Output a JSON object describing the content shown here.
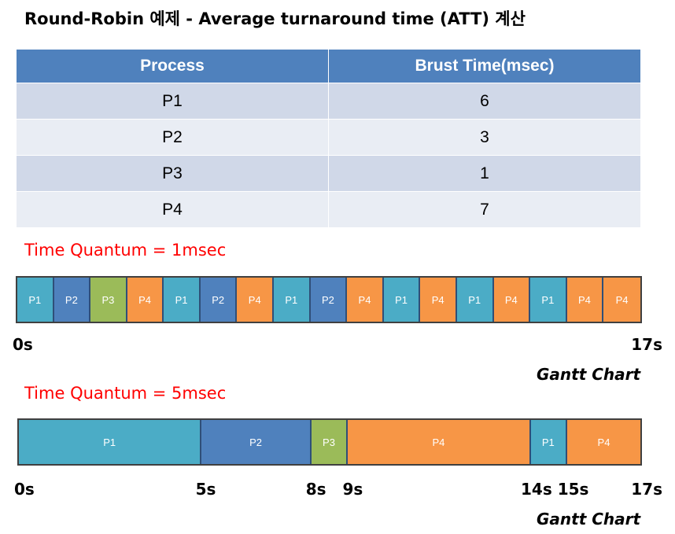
{
  "title": "Round-Robin 예제 - Average turnaround time (ATT) 계산",
  "table": {
    "headers": [
      "Process",
      "Brust Time(msec)"
    ],
    "rows": [
      [
        "P1",
        "6"
      ],
      [
        "P2",
        "3"
      ],
      [
        "P3",
        "1"
      ],
      [
        "P4",
        "7"
      ]
    ]
  },
  "colors": {
    "P1": "#4bacc6",
    "P2": "#4f81bd",
    "P3": "#9bbb59",
    "P4": "#f79646",
    "quantum_text": "#ff0000",
    "table_header": "#4f81bd"
  },
  "gantt1": {
    "quantum_label": "Time Quantum = 1msec",
    "segments": [
      {
        "label": "P1",
        "start": 0,
        "end": 1
      },
      {
        "label": "P2",
        "start": 1,
        "end": 2
      },
      {
        "label": "P3",
        "start": 2,
        "end": 3
      },
      {
        "label": "P4",
        "start": 3,
        "end": 4
      },
      {
        "label": "P1",
        "start": 4,
        "end": 5
      },
      {
        "label": "P2",
        "start": 5,
        "end": 6
      },
      {
        "label": "P4",
        "start": 6,
        "end": 7
      },
      {
        "label": "P1",
        "start": 7,
        "end": 8
      },
      {
        "label": "P2",
        "start": 8,
        "end": 9
      },
      {
        "label": "P4",
        "start": 9,
        "end": 10
      },
      {
        "label": "P1",
        "start": 10,
        "end": 11
      },
      {
        "label": "P4",
        "start": 11,
        "end": 12
      },
      {
        "label": "P1",
        "start": 12,
        "end": 13
      },
      {
        "label": "P4",
        "start": 13,
        "end": 14
      },
      {
        "label": "P1",
        "start": 14,
        "end": 15
      },
      {
        "label": "P4",
        "start": 15,
        "end": 16
      },
      {
        "label": "P4",
        "start": 16,
        "end": 17
      }
    ],
    "ticks": [
      {
        "t": 0,
        "label": "0s"
      },
      {
        "t": 17,
        "label": "17s"
      }
    ],
    "caption": "Gantt Chart"
  },
  "gantt2": {
    "quantum_label": "Time Quantum = 5msec",
    "segments": [
      {
        "label": "P1",
        "start": 0,
        "end": 5
      },
      {
        "label": "P2",
        "start": 5,
        "end": 8
      },
      {
        "label": "P3",
        "start": 8,
        "end": 9
      },
      {
        "label": "P4",
        "start": 9,
        "end": 14
      },
      {
        "label": "P1",
        "start": 14,
        "end": 15
      },
      {
        "label": "P4",
        "start": 15,
        "end": 17
      }
    ],
    "ticks": [
      {
        "t": 0,
        "label": "0s"
      },
      {
        "t": 5,
        "label": "5s"
      },
      {
        "t": 8,
        "label": "8s"
      },
      {
        "t": 9,
        "label": "9s"
      },
      {
        "t": 14,
        "label": "14s"
      },
      {
        "t": 15,
        "label": "15s"
      },
      {
        "t": 17,
        "label": "17s"
      }
    ],
    "caption": "Gantt Chart"
  }
}
